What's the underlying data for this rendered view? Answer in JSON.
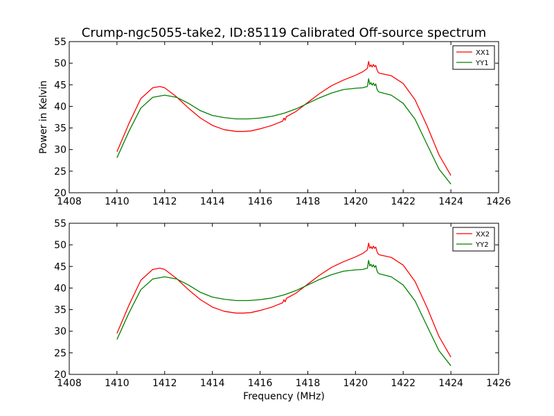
{
  "figure": {
    "title": "Crump-ngc5055-take2, ID:85119 Calibrated Off-source spectrum",
    "xlabel": "Frequency (MHz)",
    "ylabel": "Power in Kelvin"
  },
  "chart_data": [
    {
      "type": "line",
      "title": "Crump-ngc5055-take2, ID:85119 Calibrated Off-source spectrum",
      "xlabel": "",
      "ylabel": "Power in Kelvin",
      "xlim": [
        1408,
        1426
      ],
      "ylim": [
        20,
        55
      ],
      "xticks": [
        "1408",
        "1410",
        "1412",
        "1414",
        "1416",
        "1418",
        "1420",
        "1422",
        "1424",
        "1426"
      ],
      "yticks": [
        "20",
        "25",
        "30",
        "35",
        "40",
        "45",
        "50",
        "55"
      ],
      "grid": false,
      "legend_position": "top-right",
      "series": [
        {
          "name": "XX1",
          "color": "#ff0000",
          "x": [
            1410.0,
            1410.5,
            1411.0,
            1411.5,
            1411.8,
            1412.0,
            1412.5,
            1413.0,
            1413.5,
            1414.0,
            1414.5,
            1415.0,
            1415.3,
            1415.6,
            1416.0,
            1416.5,
            1416.95,
            1417.0,
            1417.05,
            1417.1,
            1417.5,
            1418.0,
            1418.5,
            1419.0,
            1419.5,
            1420.0,
            1420.3,
            1420.5,
            1420.55,
            1420.6,
            1420.65,
            1420.7,
            1420.75,
            1420.8,
            1420.85,
            1420.9,
            1420.95,
            1421.0,
            1421.5,
            1422.0,
            1422.5,
            1423.0,
            1423.5,
            1424.0
          ],
          "y": [
            29.5,
            36.0,
            41.8,
            44.3,
            44.6,
            44.3,
            42.2,
            39.6,
            37.3,
            35.6,
            34.6,
            34.2,
            34.2,
            34.3,
            34.8,
            35.6,
            36.6,
            37.3,
            36.8,
            37.6,
            38.8,
            40.9,
            43.0,
            44.8,
            46.1,
            47.2,
            48.0,
            48.8,
            50.4,
            49.2,
            49.6,
            49.1,
            49.7,
            49.2,
            49.5,
            48.5,
            47.9,
            47.7,
            47.1,
            45.3,
            41.5,
            35.5,
            28.8,
            24.0
          ]
        },
        {
          "name": "YY1",
          "color": "#008000",
          "x": [
            1410.0,
            1410.5,
            1411.0,
            1411.5,
            1412.0,
            1412.5,
            1413.0,
            1413.5,
            1414.0,
            1414.5,
            1415.0,
            1415.5,
            1416.0,
            1416.5,
            1417.0,
            1417.5,
            1418.0,
            1418.5,
            1419.0,
            1419.5,
            1420.0,
            1420.3,
            1420.5,
            1420.55,
            1420.6,
            1420.65,
            1420.7,
            1420.75,
            1420.8,
            1420.85,
            1420.9,
            1420.95,
            1421.0,
            1421.5,
            1422.0,
            1422.5,
            1423.0,
            1423.5,
            1424.0
          ],
          "y": [
            28.1,
            34.2,
            39.6,
            42.1,
            42.6,
            42.1,
            40.7,
            39.0,
            37.9,
            37.4,
            37.1,
            37.1,
            37.3,
            37.7,
            38.4,
            39.4,
            40.7,
            42.0,
            43.1,
            43.9,
            44.2,
            44.3,
            44.6,
            46.4,
            45.1,
            45.5,
            44.9,
            45.4,
            44.8,
            45.2,
            44.0,
            43.5,
            43.3,
            42.6,
            40.7,
            37.0,
            31.2,
            25.5,
            22.0
          ]
        }
      ]
    },
    {
      "type": "line",
      "title": "",
      "xlabel": "Frequency (MHz)",
      "ylabel": "",
      "xlim": [
        1408,
        1426
      ],
      "ylim": [
        20,
        55
      ],
      "xticks": [
        "1408",
        "1410",
        "1412",
        "1414",
        "1416",
        "1418",
        "1420",
        "1422",
        "1424",
        "1426"
      ],
      "yticks": [
        "20",
        "25",
        "30",
        "35",
        "40",
        "45",
        "50",
        "55"
      ],
      "grid": false,
      "legend_position": "top-right",
      "series": [
        {
          "name": "XX2",
          "color": "#ff0000",
          "x": [
            1410.0,
            1410.5,
            1411.0,
            1411.5,
            1411.8,
            1412.0,
            1412.5,
            1413.0,
            1413.5,
            1414.0,
            1414.5,
            1415.0,
            1415.3,
            1415.6,
            1416.0,
            1416.5,
            1416.95,
            1417.0,
            1417.05,
            1417.1,
            1417.5,
            1418.0,
            1418.5,
            1419.0,
            1419.5,
            1420.0,
            1420.3,
            1420.5,
            1420.55,
            1420.6,
            1420.65,
            1420.7,
            1420.75,
            1420.8,
            1420.85,
            1420.9,
            1420.95,
            1421.0,
            1421.5,
            1422.0,
            1422.5,
            1423.0,
            1423.5,
            1424.0
          ],
          "y": [
            29.5,
            36.0,
            41.8,
            44.3,
            44.6,
            44.3,
            42.2,
            39.6,
            37.3,
            35.6,
            34.6,
            34.2,
            34.2,
            34.3,
            34.8,
            35.6,
            36.6,
            37.3,
            36.8,
            37.6,
            38.8,
            40.9,
            43.0,
            44.8,
            46.1,
            47.2,
            48.0,
            48.8,
            50.4,
            49.2,
            49.6,
            49.1,
            49.7,
            49.2,
            49.5,
            48.5,
            47.9,
            47.7,
            47.1,
            45.3,
            41.5,
            35.5,
            28.8,
            24.0
          ]
        },
        {
          "name": "YY2",
          "color": "#008000",
          "x": [
            1410.0,
            1410.5,
            1411.0,
            1411.5,
            1412.0,
            1412.5,
            1413.0,
            1413.5,
            1414.0,
            1414.5,
            1415.0,
            1415.5,
            1416.0,
            1416.5,
            1417.0,
            1417.5,
            1418.0,
            1418.5,
            1419.0,
            1419.5,
            1420.0,
            1420.3,
            1420.5,
            1420.55,
            1420.6,
            1420.65,
            1420.7,
            1420.75,
            1420.8,
            1420.85,
            1420.9,
            1420.95,
            1421.0,
            1421.5,
            1422.0,
            1422.5,
            1423.0,
            1423.5,
            1424.0
          ],
          "y": [
            28.1,
            34.2,
            39.6,
            42.1,
            42.6,
            42.1,
            40.7,
            39.0,
            37.9,
            37.4,
            37.1,
            37.1,
            37.3,
            37.7,
            38.4,
            39.4,
            40.7,
            42.0,
            43.1,
            43.9,
            44.2,
            44.3,
            44.6,
            46.4,
            45.1,
            45.5,
            44.9,
            45.4,
            44.8,
            45.2,
            44.0,
            43.5,
            43.3,
            42.6,
            40.7,
            37.0,
            31.2,
            25.5,
            22.0
          ]
        }
      ]
    }
  ]
}
